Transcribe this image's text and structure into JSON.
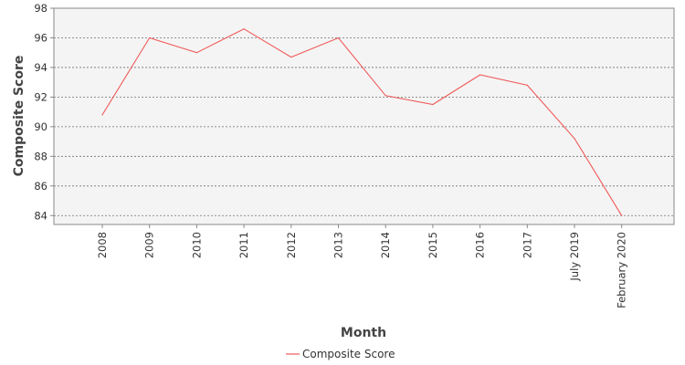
{
  "chart_data": {
    "type": "line",
    "categories": [
      "2008",
      "2009",
      "2010",
      "2011",
      "2012",
      "2013",
      "2014",
      "2015",
      "2016",
      "2017",
      "July 2019",
      "February 2020"
    ],
    "series": [
      {
        "name": "Composite Score",
        "color": "#f05a5a",
        "values": [
          90.8,
          96.0,
          95.0,
          96.6,
          94.7,
          96.0,
          92.1,
          91.5,
          93.5,
          92.8,
          89.2,
          84.0
        ]
      }
    ],
    "xlabel": "Month",
    "ylabel": "Composite Score",
    "ylim": [
      83.4,
      98
    ],
    "yticks": [
      84,
      86,
      88,
      90,
      92,
      94,
      96,
      98
    ],
    "grid": true,
    "legend": "bottom-center",
    "plot_background": "#f4f4f4"
  }
}
